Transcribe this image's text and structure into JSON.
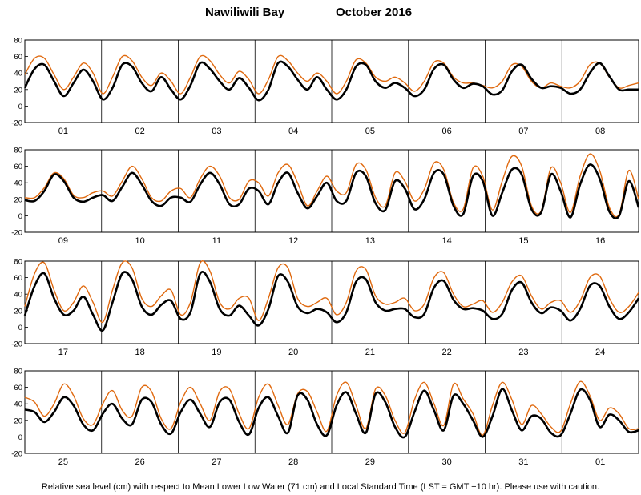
{
  "chart_data": {
    "type": "line",
    "title_location": "Nawiliwili Bay",
    "title_period": "October   2016",
    "footnote": "Relative sea level (cm) with respect to Mean Lower Low Water (71 cm) and Local Standard Time (LST = GMT −10 hr). Please use with caution.",
    "ylim": [
      -20,
      80
    ],
    "yticks": [
      -20,
      0,
      20,
      40,
      60,
      80
    ],
    "grid": false,
    "colors": {
      "observed": "#000000",
      "predicted": "#e06a10"
    },
    "panels": [
      {
        "days": [
          "01",
          "02",
          "03",
          "04",
          "05",
          "06",
          "07",
          "08"
        ],
        "observed": [
          22,
          45,
          50,
          30,
          12,
          28,
          44,
          30,
          8,
          22,
          50,
          48,
          28,
          18,
          35,
          20,
          8,
          25,
          52,
          45,
          30,
          20,
          34,
          22,
          7,
          20,
          52,
          48,
          32,
          20,
          35,
          20,
          8,
          20,
          48,
          50,
          30,
          22,
          28,
          22,
          12,
          20,
          45,
          50,
          32,
          22,
          27,
          24,
          14,
          19,
          42,
          50,
          33,
          22,
          24,
          22,
          15,
          20,
          40,
          52,
          36,
          20,
          20,
          20
        ],
        "predicted": [
          38,
          58,
          58,
          38,
          20,
          35,
          52,
          40,
          15,
          35,
          60,
          55,
          35,
          25,
          40,
          30,
          15,
          35,
          60,
          55,
          38,
          28,
          42,
          32,
          15,
          32,
          60,
          55,
          40,
          30,
          40,
          30,
          15,
          30,
          56,
          52,
          35,
          30,
          35,
          28,
          18,
          30,
          53,
          52,
          35,
          28,
          28,
          25,
          22,
          30,
          50,
          48,
          30,
          22,
          28,
          24,
          22,
          30,
          50,
          52,
          35,
          22,
          25,
          28
        ]
      },
      {
        "days": [
          "09",
          "10",
          "11",
          "12",
          "13",
          "14",
          "15",
          "16"
        ],
        "observed": [
          19,
          18,
          30,
          50,
          42,
          22,
          17,
          22,
          25,
          18,
          35,
          52,
          38,
          18,
          12,
          22,
          22,
          17,
          38,
          52,
          38,
          14,
          14,
          33,
          30,
          14,
          40,
          52,
          28,
          9,
          24,
          40,
          18,
          18,
          52,
          48,
          15,
          7,
          42,
          33,
          8,
          20,
          52,
          50,
          12,
          2,
          48,
          42,
          0,
          28,
          56,
          50,
          8,
          4,
          50,
          30,
          -2,
          38,
          62,
          45,
          5,
          0,
          42,
          10
        ],
        "predicted": [
          22,
          22,
          34,
          52,
          45,
          25,
          22,
          28,
          30,
          24,
          42,
          60,
          45,
          22,
          18,
          30,
          33,
          22,
          45,
          60,
          48,
          22,
          20,
          42,
          40,
          24,
          52,
          62,
          40,
          12,
          30,
          48,
          30,
          28,
          62,
          56,
          22,
          12,
          52,
          42,
          18,
          32,
          64,
          56,
          16,
          8,
          58,
          48,
          7,
          42,
          72,
          60,
          12,
          6,
          58,
          40,
          4,
          48,
          75,
          55,
          10,
          2,
          55,
          20
        ]
      },
      {
        "days": [
          "17",
          "18",
          "19",
          "20",
          "21",
          "22",
          "23",
          "24"
        ],
        "observed": [
          14,
          50,
          65,
          35,
          15,
          20,
          37,
          15,
          -4,
          30,
          65,
          58,
          25,
          15,
          27,
          32,
          10,
          18,
          65,
          55,
          22,
          14,
          26,
          14,
          2,
          22,
          62,
          55,
          25,
          17,
          22,
          18,
          6,
          18,
          55,
          58,
          30,
          20,
          22,
          22,
          12,
          16,
          48,
          56,
          33,
          22,
          23,
          20,
          10,
          16,
          45,
          54,
          30,
          17,
          24,
          20,
          8,
          22,
          50,
          50,
          25,
          10,
          18,
          35
        ],
        "predicted": [
          25,
          65,
          78,
          45,
          20,
          30,
          50,
          30,
          6,
          45,
          78,
          72,
          35,
          25,
          38,
          45,
          15,
          30,
          78,
          68,
          30,
          22,
          35,
          35,
          8,
          35,
          72,
          72,
          35,
          25,
          30,
          35,
          15,
          30,
          68,
          70,
          38,
          28,
          30,
          35,
          20,
          28,
          60,
          66,
          40,
          25,
          28,
          32,
          18,
          30,
          55,
          62,
          38,
          22,
          30,
          32,
          18,
          32,
          60,
          62,
          35,
          18,
          25,
          42
        ]
      },
      {
        "days": [
          "25",
          "26",
          "27",
          "28",
          "29",
          "30",
          "31",
          "01"
        ],
        "observed": [
          33,
          30,
          18,
          30,
          48,
          38,
          15,
          8,
          28,
          40,
          22,
          15,
          45,
          42,
          15,
          4,
          30,
          45,
          28,
          12,
          42,
          45,
          18,
          3,
          35,
          48,
          25,
          5,
          50,
          45,
          15,
          2,
          38,
          54,
          28,
          5,
          52,
          42,
          12,
          0,
          30,
          56,
          32,
          8,
          50,
          40,
          20,
          0,
          25,
          58,
          32,
          8,
          25,
          22,
          5,
          2,
          28,
          57,
          45,
          12,
          27,
          20,
          6,
          8
        ],
        "predicted": [
          48,
          42,
          25,
          40,
          64,
          50,
          22,
          15,
          40,
          56,
          32,
          25,
          60,
          55,
          22,
          10,
          42,
          60,
          40,
          20,
          55,
          58,
          28,
          10,
          48,
          64,
          38,
          15,
          52,
          55,
          30,
          7,
          50,
          66,
          38,
          10,
          58,
          50,
          20,
          5,
          45,
          66,
          40,
          14,
          64,
          46,
          28,
          2,
          38,
          66,
          45,
          15,
          38,
          28,
          12,
          7,
          40,
          67,
          50,
          20,
          35,
          28,
          10,
          10
        ]
      }
    ]
  }
}
